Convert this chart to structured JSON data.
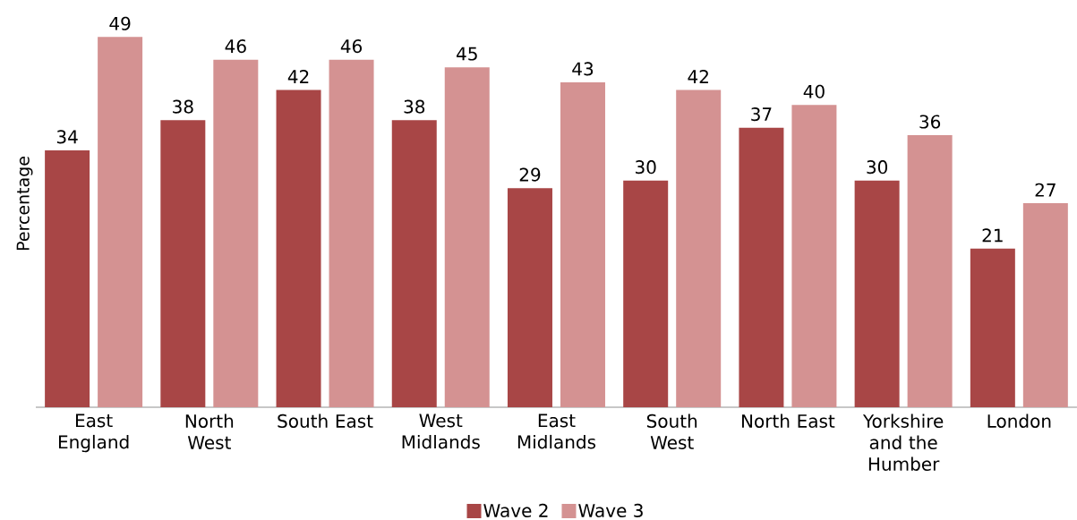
{
  "chart_data": {
    "type": "bar",
    "ylabel": "Percentage",
    "categories": [
      "East England",
      "North West",
      "South East",
      "West Midlands",
      "East Midlands",
      "South West",
      "North East",
      "Yorkshire and the Humber",
      "London"
    ],
    "series": [
      {
        "name": "Wave 2",
        "color": "#a84646",
        "values": [
          34,
          38,
          42,
          38,
          29,
          30,
          37,
          30,
          21
        ]
      },
      {
        "name": "Wave 3",
        "color": "#d49292",
        "values": [
          49,
          46,
          46,
          45,
          43,
          42,
          40,
          36,
          27
        ]
      }
    ],
    "data_labels": true,
    "legend": "bottom",
    "tick_labels": "x"
  }
}
